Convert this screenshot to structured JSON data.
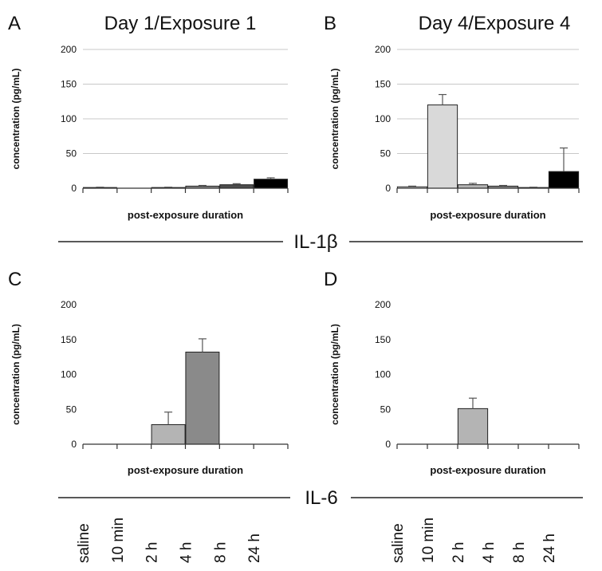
{
  "columns": [
    {
      "title": "Day 1/Exposure 1"
    },
    {
      "title": "Day 4/Exposure 4"
    }
  ],
  "sections": [
    {
      "label": "IL-1β"
    },
    {
      "label": "IL-6"
    }
  ],
  "categories": [
    "saline",
    "10 min",
    "2 h",
    "4 h",
    "8 h",
    "24 h"
  ],
  "bar_colors": [
    "#f2f2f2",
    "#d9d9d9",
    "#b4b4b4",
    "#8a8a8a",
    "#4d4d4d",
    "#000000"
  ],
  "chart_data": [
    {
      "type": "bar",
      "panel": "A",
      "title": "",
      "ylabel": "concentration (pg/mL)",
      "xlabel": "post-exposure duration",
      "ylim": [
        0,
        200
      ],
      "yticks": [
        0,
        50,
        100,
        150,
        200
      ],
      "grid": true,
      "categories": [
        "saline",
        "10 min",
        "2 h",
        "4 h",
        "8 h",
        "24 h"
      ],
      "values": [
        1,
        0,
        1,
        3,
        5,
        13
      ],
      "errors": [
        0.5,
        0,
        0.5,
        1,
        1.5,
        2
      ]
    },
    {
      "type": "bar",
      "panel": "B",
      "title": "",
      "ylabel": "concentration (pg/mL)",
      "xlabel": "post-exposure duration",
      "ylim": [
        0,
        200
      ],
      "yticks": [
        0,
        50,
        100,
        150,
        200
      ],
      "grid": true,
      "categories": [
        "saline",
        "10 min",
        "2 h",
        "4 h",
        "8 h",
        "24 h"
      ],
      "values": [
        2,
        120,
        5,
        3,
        1,
        24
      ],
      "errors": [
        1,
        15,
        2,
        1,
        0.5,
        34
      ]
    },
    {
      "type": "bar",
      "panel": "C",
      "title": "",
      "ylabel": "concentration (pg/mL)",
      "xlabel": "post-exposure duration",
      "ylim": [
        0,
        200
      ],
      "yticks": [
        0,
        50,
        100,
        150,
        200
      ],
      "grid": false,
      "categories": [
        "saline",
        "10 min",
        "2 h",
        "4 h",
        "8 h",
        "24 h"
      ],
      "values": [
        0,
        0,
        28,
        132,
        0,
        0
      ],
      "errors": [
        0,
        0,
        18,
        19,
        0,
        0
      ]
    },
    {
      "type": "bar",
      "panel": "D",
      "title": "",
      "ylabel": "concentration (pg/mL)",
      "xlabel": "post-exposure duration",
      "ylim": [
        0,
        200
      ],
      "yticks": [
        0,
        50,
        100,
        150,
        200
      ],
      "grid": false,
      "categories": [
        "saline",
        "10 min",
        "2 h",
        "4 h",
        "8 h",
        "24 h"
      ],
      "values": [
        0,
        0,
        51,
        0,
        0,
        0
      ],
      "errors": [
        0,
        0,
        15,
        0,
        0,
        0
      ]
    }
  ]
}
